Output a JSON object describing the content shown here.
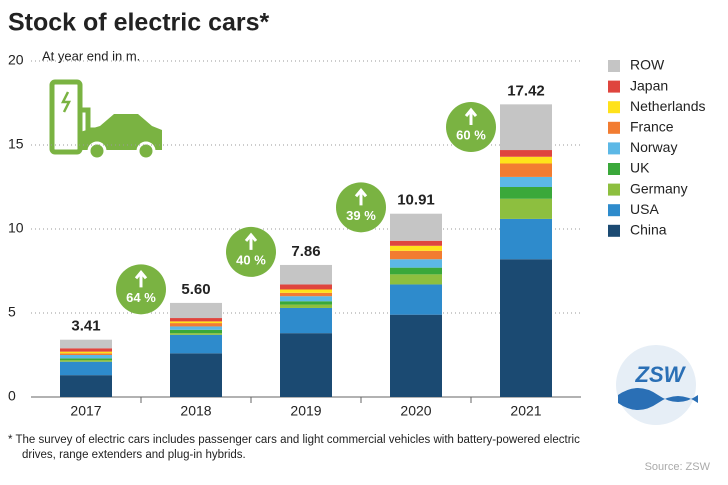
{
  "chart_data": {
    "type": "stacked-bar",
    "title": "Stock of electric cars*",
    "subtitle": "At year end in m.",
    "categories": [
      "2017",
      "2018",
      "2019",
      "2020",
      "2021"
    ],
    "series": [
      {
        "name": "China",
        "color": "#1b4a72",
        "values": [
          1.3,
          2.6,
          3.8,
          4.9,
          8.2
        ]
      },
      {
        "name": "USA",
        "color": "#2e8bcc",
        "values": [
          0.8,
          1.1,
          1.5,
          1.8,
          2.4
        ]
      },
      {
        "name": "Germany",
        "color": "#8dbf3f",
        "values": [
          0.1,
          0.1,
          0.2,
          0.6,
          1.2
        ]
      },
      {
        "name": "UK",
        "color": "#3aa83a",
        "values": [
          0.1,
          0.2,
          0.2,
          0.4,
          0.7
        ]
      },
      {
        "name": "Norway",
        "color": "#5cb8e6",
        "values": [
          0.2,
          0.2,
          0.3,
          0.5,
          0.6
        ]
      },
      {
        "name": "France",
        "color": "#f27c31",
        "values": [
          0.1,
          0.2,
          0.2,
          0.5,
          0.8
        ]
      },
      {
        "name": "Netherlands",
        "color": "#ffe21a",
        "values": [
          0.1,
          0.1,
          0.2,
          0.3,
          0.4
        ]
      },
      {
        "name": "Japan",
        "color": "#df453e",
        "values": [
          0.2,
          0.2,
          0.3,
          0.3,
          0.4
        ]
      },
      {
        "name": "ROW",
        "color": "#c5c5c5",
        "values": [
          0.51,
          0.9,
          1.16,
          1.61,
          2.72
        ]
      }
    ],
    "totals": {
      "values": [
        3.41,
        5.6,
        7.86,
        10.91,
        17.42
      ],
      "value_labels": [
        "3.41",
        "5.60",
        "7.86",
        "10.91",
        "17.42"
      ]
    },
    "growth": {
      "values": [
        64,
        40,
        39,
        60
      ],
      "value_labels": [
        "64 %",
        "40 %",
        "39 %",
        "60 %"
      ],
      "color": "#7ab342"
    },
    "ylim": [
      0,
      20
    ],
    "yticks": [
      0,
      5,
      10,
      15,
      20
    ],
    "grid": true,
    "footnote": [
      "* The survey of electric cars includes passenger cars and light commercial vehicles with battery-powered electric",
      "drives, range extenders and plug-in hybrids."
    ],
    "source": "Source: ZSW",
    "logo": "ZSW"
  }
}
